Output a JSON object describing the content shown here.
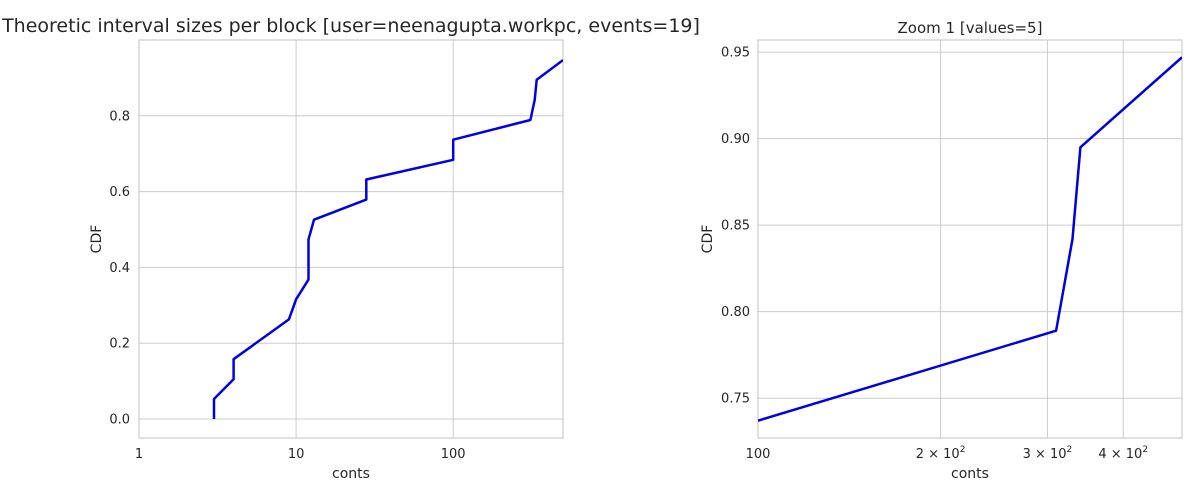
{
  "chart_data": [
    {
      "type": "line",
      "title": "Theoretic interval sizes per block [user=neenagupta.workpc, events=19]",
      "xlabel": "conts",
      "ylabel": "CDF",
      "xscale": "log",
      "xlim": [
        1,
        500
      ],
      "ylim": [
        -0.05,
        1.0
      ],
      "xticks": [
        1,
        10,
        100
      ],
      "xtick_labels": [
        "1",
        "10",
        "100"
      ],
      "yticks": [
        0.0,
        0.2,
        0.4,
        0.6,
        0.8
      ],
      "ytick_labels": [
        "0.0",
        "0.2",
        "0.4",
        "0.6",
        "0.8"
      ],
      "grid": true,
      "color": "#0000e0",
      "series": [
        {
          "x": [
            3,
            3,
            4,
            4,
            9,
            10,
            12,
            12,
            13,
            28,
            28,
            100,
            100,
            310,
            330,
            340,
            500
          ],
          "y": [
            0.0,
            0.053,
            0.105,
            0.158,
            0.263,
            0.316,
            0.368,
            0.474,
            0.526,
            0.579,
            0.632,
            0.684,
            0.737,
            0.789,
            0.842,
            0.895,
            0.947
          ]
        }
      ]
    },
    {
      "type": "line",
      "title": "Zoom 1 [values=5]",
      "xlabel": "conts",
      "ylabel": "CDF",
      "xscale": "log",
      "xlim": [
        100,
        500
      ],
      "ylim": [
        0.727,
        0.957
      ],
      "xticks": [
        100,
        200,
        300,
        400
      ],
      "xtick_labels": [
        "100",
        "2 × 10",
        "3 × 10",
        "4 × 10"
      ],
      "xtick_exponent": "2",
      "yticks": [
        0.75,
        0.8,
        0.85,
        0.9,
        0.95
      ],
      "ytick_labels": [
        "0.75",
        "0.80",
        "0.85",
        "0.90",
        "0.95"
      ],
      "grid": true,
      "color": "#0000e0",
      "series": [
        {
          "x": [
            100,
            310,
            330,
            340,
            500
          ],
          "y": [
            0.737,
            0.789,
            0.842,
            0.895,
            0.947
          ]
        }
      ]
    }
  ]
}
